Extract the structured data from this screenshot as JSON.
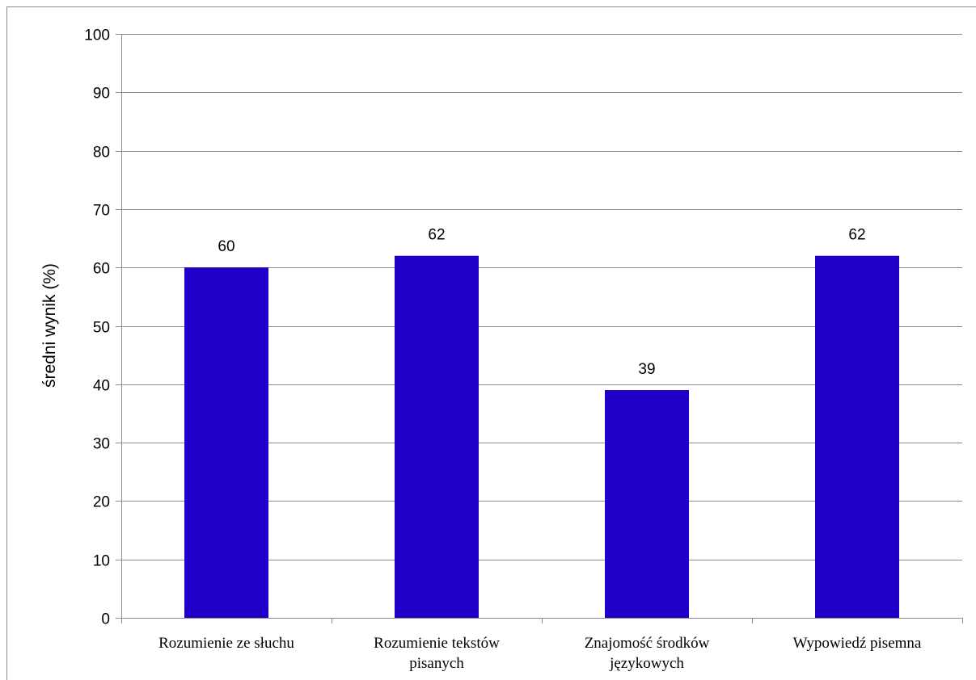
{
  "chart_data": {
    "type": "bar",
    "title": "",
    "xlabel": "",
    "ylabel": "średni wynik (%)",
    "ylim": [
      0,
      100
    ],
    "yticks": [
      0,
      10,
      20,
      30,
      40,
      50,
      60,
      70,
      80,
      90,
      100
    ],
    "grid": true,
    "legend": "none",
    "categories": [
      [
        "Rozumienie ze słuchu"
      ],
      [
        "Rozumienie tekstów",
        "pisanych"
      ],
      [
        "Znajomość środków",
        "językowych"
      ],
      [
        "Wypowiedź pisemna"
      ]
    ],
    "values": [
      60,
      62,
      39,
      62
    ],
    "bar_color": "#1f00c8",
    "gridline_color": "#8c8c8c"
  }
}
